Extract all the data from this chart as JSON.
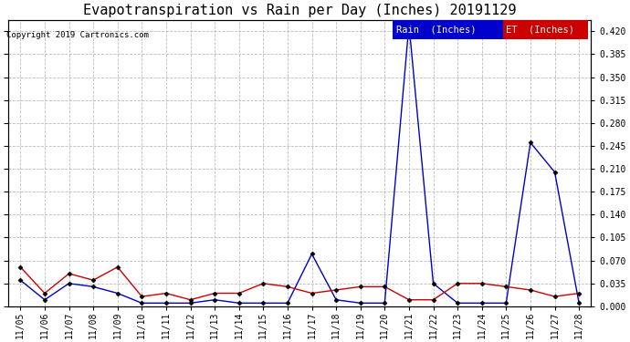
{
  "title": "Evapotranspiration vs Rain per Day (Inches) 20191129",
  "copyright": "Copyright 2019 Cartronics.com",
  "background_color": "#ffffff",
  "plot_bg_color": "#ffffff",
  "grid_color": "#bbbbbb",
  "dates": [
    "11/05",
    "11/06",
    "11/07",
    "11/08",
    "11/09",
    "11/10",
    "11/11",
    "11/12",
    "11/13",
    "11/14",
    "11/15",
    "11/16",
    "11/17",
    "11/18",
    "11/19",
    "11/20",
    "11/21",
    "11/22",
    "11/23",
    "11/24",
    "11/25",
    "11/26",
    "11/27",
    "11/28"
  ],
  "rain_inches": [
    0.04,
    0.01,
    0.035,
    0.03,
    0.02,
    0.005,
    0.005,
    0.005,
    0.01,
    0.005,
    0.005,
    0.005,
    0.08,
    0.01,
    0.005,
    0.005,
    0.43,
    0.035,
    0.005,
    0.005,
    0.005,
    0.25,
    0.205,
    0.005
  ],
  "et_inches": [
    0.06,
    0.02,
    0.05,
    0.04,
    0.06,
    0.015,
    0.02,
    0.01,
    0.02,
    0.02,
    0.035,
    0.03,
    0.02,
    0.025,
    0.03,
    0.03,
    0.01,
    0.01,
    0.035,
    0.035,
    0.03,
    0.025,
    0.015,
    0.02
  ],
  "ylim": [
    0.0,
    0.4375
  ],
  "yticks": [
    0.0,
    0.035,
    0.07,
    0.105,
    0.14,
    0.175,
    0.21,
    0.245,
    0.28,
    0.315,
    0.35,
    0.385,
    0.42
  ],
  "rain_color": "#0000cc",
  "et_color": "#cc0000",
  "legend_rain_bg": "#0000cc",
  "legend_et_bg": "#cc0000",
  "legend_rain_text": "Rain  (Inches)",
  "legend_et_text": "ET  (Inches)",
  "marker": "D",
  "marker_size": 2.5,
  "line_width": 1.0,
  "title_fontsize": 11,
  "copyright_fontsize": 6.5,
  "tick_fontsize": 7,
  "legend_fontsize": 7.5
}
